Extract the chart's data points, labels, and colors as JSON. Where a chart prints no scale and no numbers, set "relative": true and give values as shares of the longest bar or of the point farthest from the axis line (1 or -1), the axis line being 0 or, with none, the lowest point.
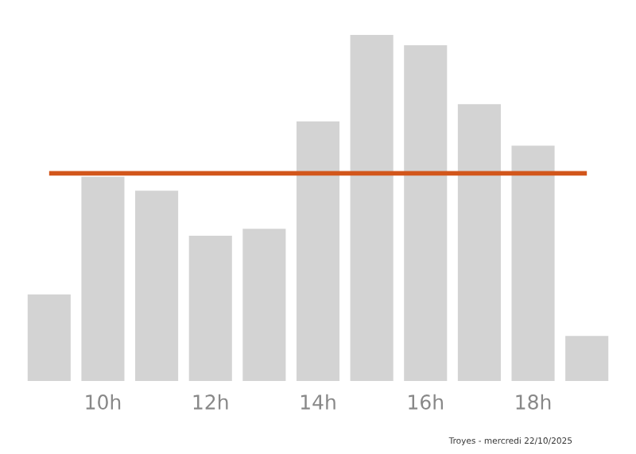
{
  "chart_data": {
    "type": "bar",
    "relative": true,
    "categories": [
      null,
      "10h",
      null,
      "12h",
      null,
      "14h",
      null,
      "16h",
      null,
      "18h",
      null
    ],
    "values": [
      0.25,
      0.59,
      0.55,
      0.42,
      0.44,
      0.75,
      1.0,
      0.97,
      0.8,
      0.68,
      0.13
    ],
    "color": "#d3d3d3",
    "ref_lines": [
      {
        "axis": "y",
        "value": 0.6,
        "color": "#d2561b",
        "line_style": "solid"
      }
    ],
    "grid": false,
    "legend": false,
    "annotations": [
      "Troyes - mercredi 22/10/2025"
    ]
  }
}
